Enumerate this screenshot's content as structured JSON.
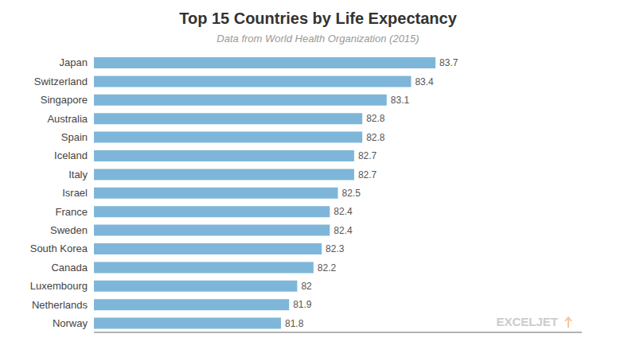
{
  "chart_data": {
    "type": "bar",
    "title": "Top 15 Countries by Life Expectancy",
    "subtitle": "Data from World Health Organization (2015)",
    "annotation": "EXCELJET",
    "orientation": "horizontal",
    "categories": [
      "Japan",
      "Switzerland",
      "Singapore",
      "Australia",
      "Spain",
      "Iceland",
      "Italy",
      "Israel",
      "France",
      "Sweden",
      "South Korea",
      "Canada",
      "Luxembourg",
      "Netherlands",
      "Norway"
    ],
    "values": [
      83.7,
      83.4,
      83.1,
      82.8,
      82.8,
      82.7,
      82.7,
      82.5,
      82.4,
      82.4,
      82.3,
      82.2,
      82.0,
      81.9,
      81.8
    ],
    "color": "#7EB6D9",
    "xlim": [
      79.5,
      85.5
    ],
    "data_labels": true,
    "tick_labels": "y",
    "grid": false
  }
}
